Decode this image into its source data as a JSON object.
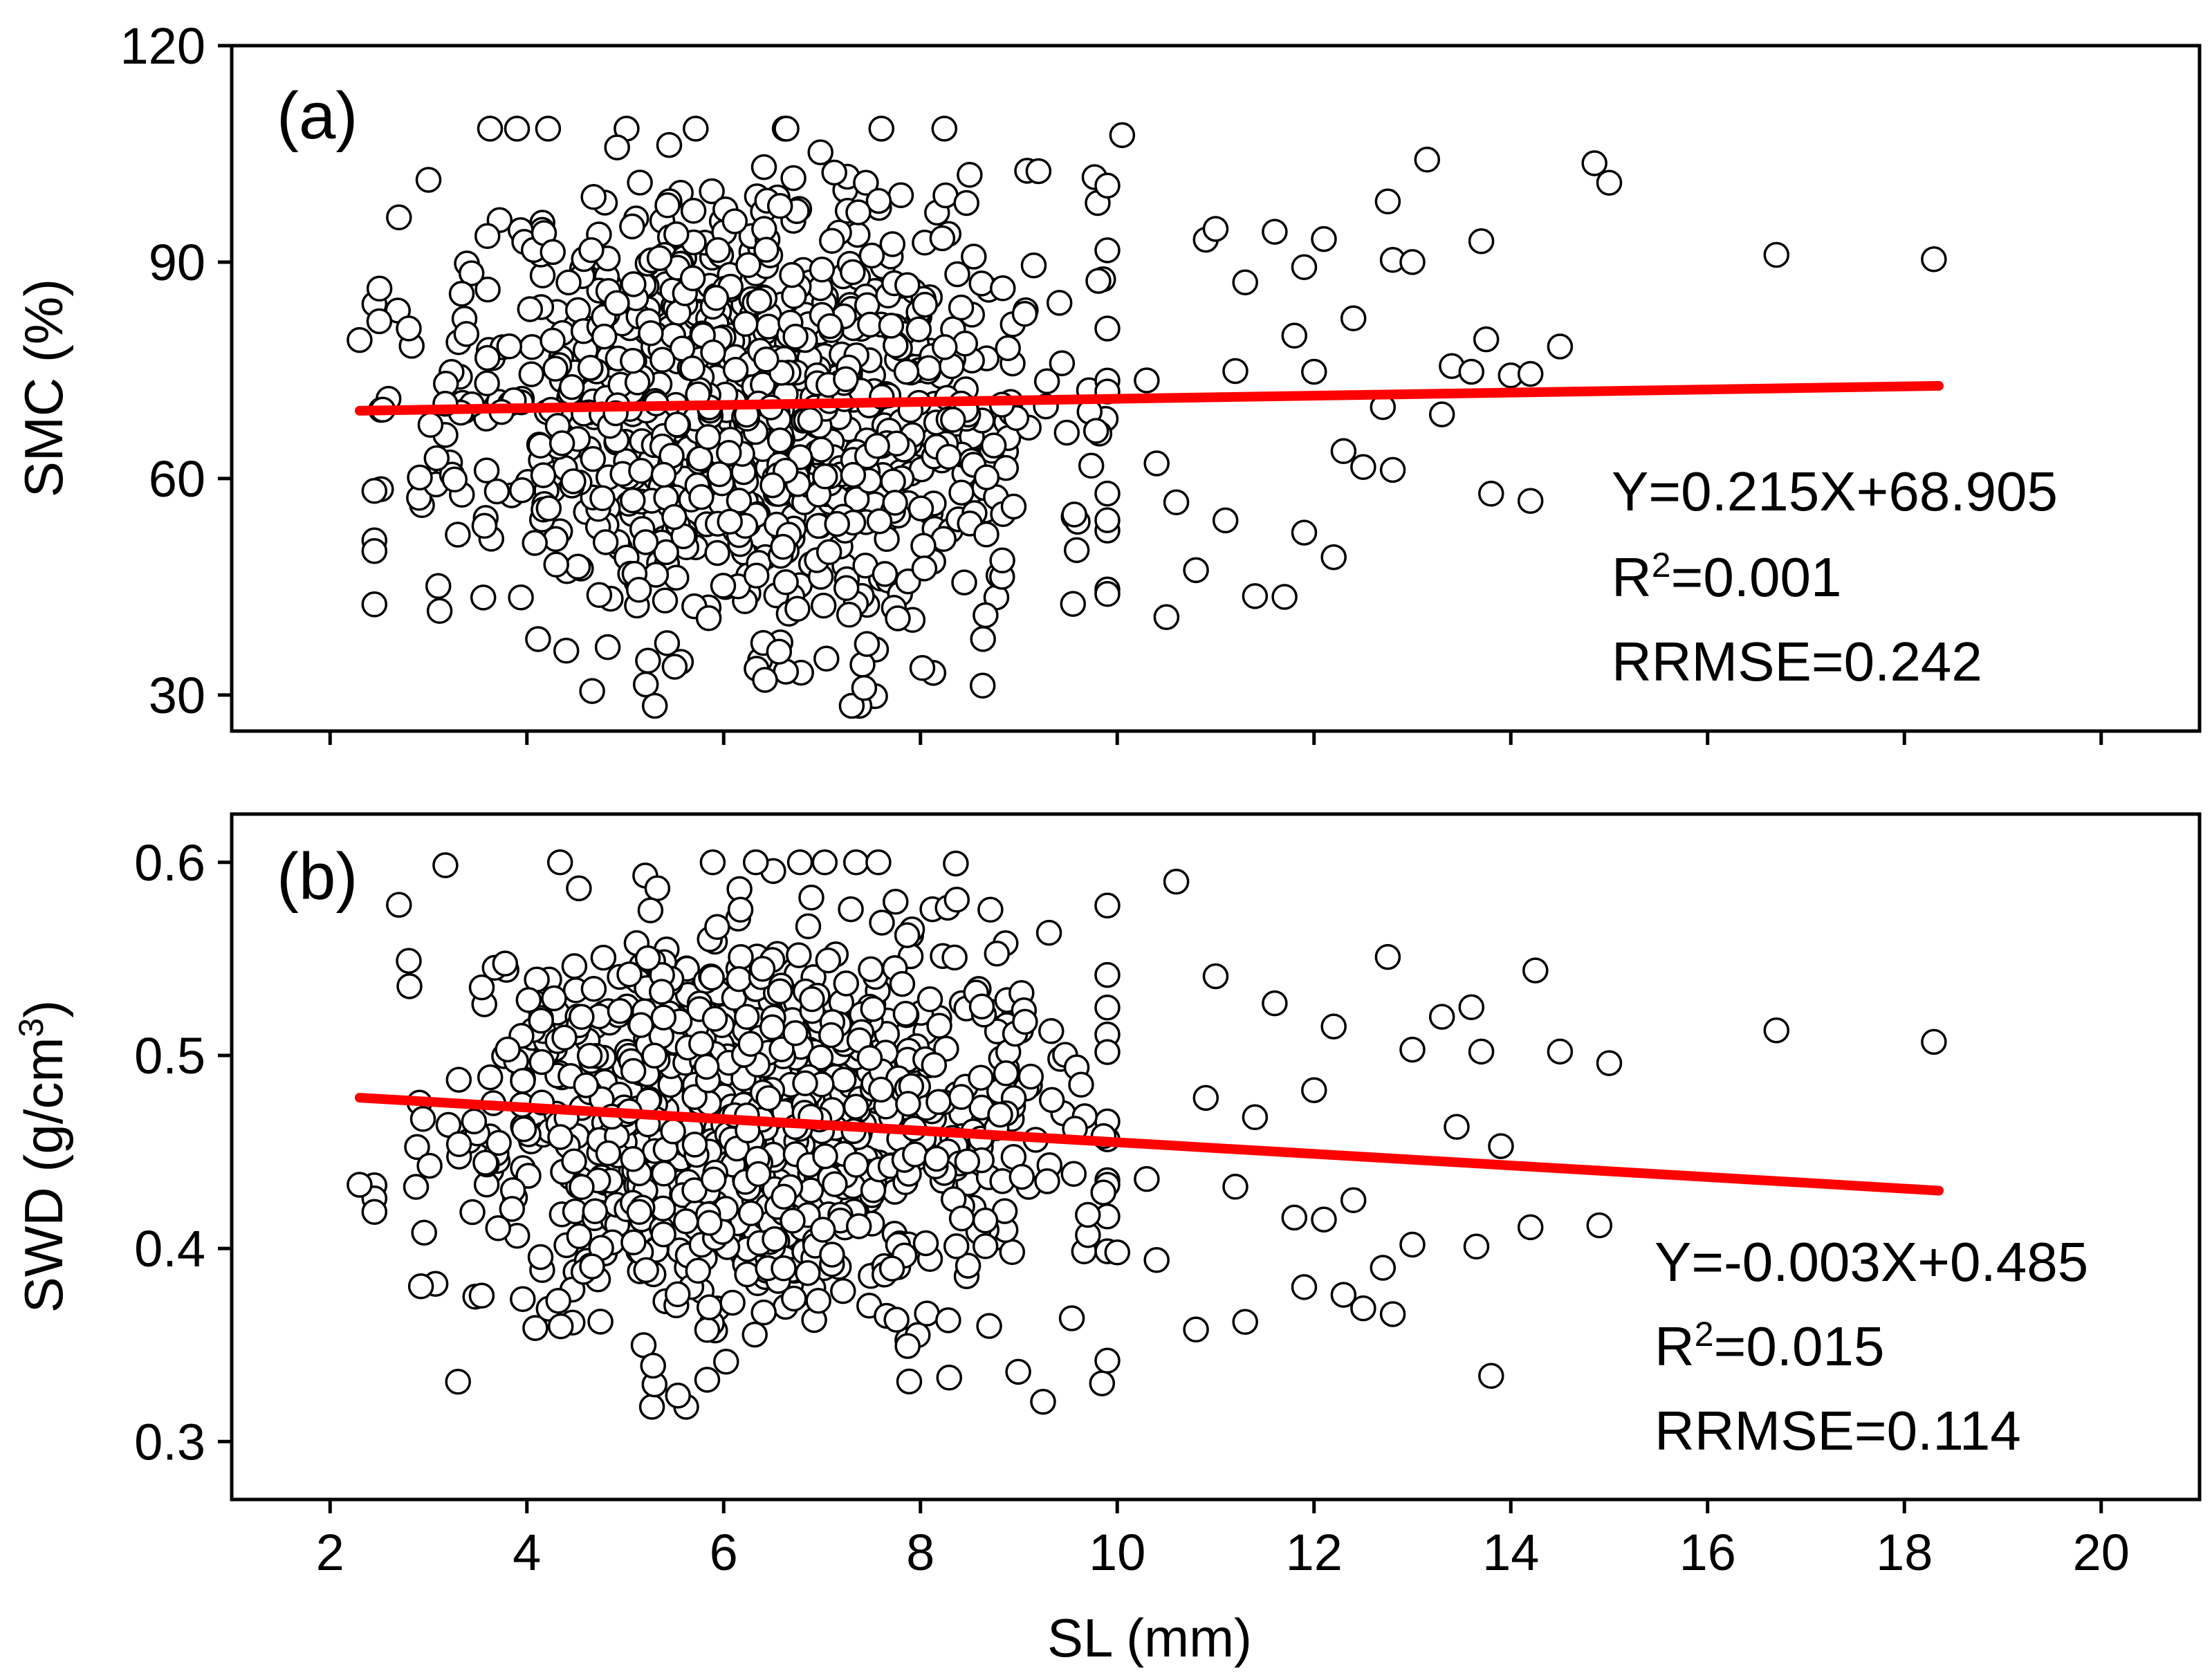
{
  "chart_data": {
    "type": "scatter",
    "shared_x": {
      "label": "SL (mm)",
      "range": [
        1,
        21
      ],
      "ticks": [
        2,
        4,
        6,
        8,
        10,
        12,
        14,
        16,
        18,
        20
      ]
    },
    "panels": [
      {
        "panel_label": "(a)",
        "ylabel": "SMC (%)",
        "ylim": [
          25,
          120
        ],
        "yticks": [
          30,
          60,
          90,
          120
        ],
        "fit": {
          "slope": 0.215,
          "intercept": 68.905,
          "x_range": [
            2.3,
            18.35
          ]
        },
        "equation": "Y=0.215X+68.905",
        "r2_prefix": "R",
        "r2_sup": "2",
        "r2_value": "=0.001",
        "rrmse": "RRMSE=0.242",
        "marker_count": 1050,
        "seed": 11,
        "cluster": {
          "x_mean": 6.3,
          "x_sd": 1.5,
          "y_mean": 70,
          "y_sd": 16,
          "y_min": 28.5,
          "y_max": 108.5
        },
        "outliers": [
          [
            2.3,
            79.2
          ],
          [
            2.5,
            81.8
          ],
          [
            2.7,
            96.2
          ],
          [
            2.8,
            80.8
          ],
          [
            3.0,
            101.4
          ],
          [
            3.1,
            45.1
          ],
          [
            8.5,
            102.1
          ],
          [
            9.2,
            102.6
          ],
          [
            9.9,
            100.6
          ],
          [
            10.05,
            107.6
          ],
          [
            10.3,
            73.6
          ],
          [
            10.4,
            62.1
          ],
          [
            10.5,
            40.8
          ],
          [
            10.6,
            56.7
          ],
          [
            10.8,
            47.3
          ],
          [
            10.9,
            93.1
          ],
          [
            11.0,
            94.6
          ],
          [
            11.1,
            54.2
          ],
          [
            11.2,
            74.9
          ],
          [
            11.3,
            87.2
          ],
          [
            11.4,
            43.7
          ],
          [
            11.6,
            94.2
          ],
          [
            11.7,
            43.6
          ],
          [
            11.8,
            79.8
          ],
          [
            11.9,
            52.5
          ],
          [
            11.9,
            89.3
          ],
          [
            12.0,
            74.8
          ],
          [
            12.1,
            93.2
          ],
          [
            12.2,
            49.1
          ],
          [
            12.3,
            63.8
          ],
          [
            12.4,
            82.2
          ],
          [
            12.5,
            61.6
          ],
          [
            12.7,
            69.9
          ],
          [
            12.75,
            98.4
          ],
          [
            12.8,
            90.3
          ],
          [
            12.8,
            61.2
          ],
          [
            13.0,
            90.0
          ],
          [
            13.15,
            104.2
          ],
          [
            13.3,
            68.9
          ],
          [
            13.4,
            75.6
          ],
          [
            13.6,
            74.8
          ],
          [
            13.7,
            92.9
          ],
          [
            13.75,
            79.3
          ],
          [
            13.8,
            57.9
          ],
          [
            14.0,
            74.3
          ],
          [
            14.2,
            56.9
          ],
          [
            14.2,
            74.5
          ],
          [
            14.5,
            78.3
          ],
          [
            14.85,
            103.7
          ],
          [
            15.0,
            101.0
          ],
          [
            16.7,
            91.0
          ],
          [
            18.3,
            90.4
          ]
        ]
      },
      {
        "panel_label": "(b)",
        "ylabel": "SWD (g/cm",
        "ylabel_sup": "3",
        "ylabel_close": ")",
        "ylim": [
          0.27,
          0.625
        ],
        "yticks": [
          0.3,
          0.4,
          0.5,
          0.6
        ],
        "fit": {
          "slope": -0.003,
          "intercept": 0.485,
          "x_range": [
            2.3,
            18.35
          ]
        },
        "equation": "Y=-0.003X+0.485",
        "r2_prefix": "R",
        "r2_sup": "2",
        "r2_value": "=0.015",
        "rrmse": "RRMSE=0.114",
        "marker_count": 1050,
        "seed": 29,
        "cluster": {
          "x_mean": 6.3,
          "x_sd": 1.5,
          "y_mean": 0.466,
          "y_sd": 0.052,
          "y_min": 0.318,
          "y_max": 0.6
        },
        "outliers": [
          [
            2.3,
            0.433
          ],
          [
            2.7,
            0.578
          ],
          [
            2.8,
            0.549
          ],
          [
            3.3,
            0.331
          ],
          [
            10.0,
            0.398
          ],
          [
            10.3,
            0.436
          ],
          [
            10.4,
            0.394
          ],
          [
            10.6,
            0.59
          ],
          [
            10.8,
            0.358
          ],
          [
            10.9,
            0.478
          ],
          [
            11.0,
            0.541
          ],
          [
            11.2,
            0.432
          ],
          [
            11.3,
            0.362
          ],
          [
            11.4,
            0.468
          ],
          [
            11.6,
            0.527
          ],
          [
            11.8,
            0.416
          ],
          [
            11.9,
            0.38
          ],
          [
            12.0,
            0.482
          ],
          [
            12.1,
            0.415
          ],
          [
            12.2,
            0.515
          ],
          [
            12.3,
            0.376
          ],
          [
            12.4,
            0.425
          ],
          [
            12.5,
            0.369
          ],
          [
            12.7,
            0.39
          ],
          [
            12.75,
            0.551
          ],
          [
            12.8,
            0.366
          ],
          [
            13.0,
            0.402
          ],
          [
            13.0,
            0.503
          ],
          [
            13.3,
            0.52
          ],
          [
            13.45,
            0.463
          ],
          [
            13.6,
            0.525
          ],
          [
            13.65,
            0.401
          ],
          [
            13.7,
            0.502
          ],
          [
            13.8,
            0.334
          ],
          [
            13.9,
            0.453
          ],
          [
            14.2,
            0.411
          ],
          [
            14.25,
            0.544
          ],
          [
            14.5,
            0.502
          ],
          [
            14.9,
            0.412
          ],
          [
            15.0,
            0.496
          ],
          [
            16.7,
            0.513
          ],
          [
            18.3,
            0.507
          ]
        ]
      }
    ]
  }
}
